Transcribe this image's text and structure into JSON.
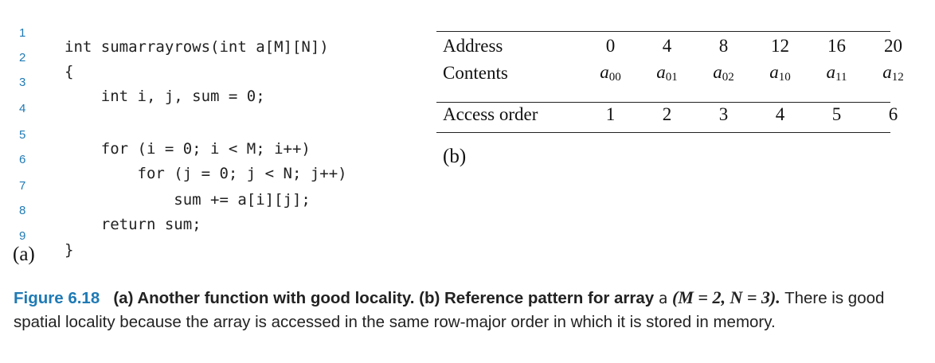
{
  "code": {
    "lines": [
      {
        "num": "1",
        "text": "int sumarrayrows(int a[M][N])"
      },
      {
        "num": "2",
        "text": "{"
      },
      {
        "num": "3",
        "text": "    int i, j, sum = 0;"
      },
      {
        "num": "4",
        "text": ""
      },
      {
        "num": "5",
        "text": "    for (i = 0; i < M; i++)"
      },
      {
        "num": "6",
        "text": "        for (j = 0; j < N; j++)"
      },
      {
        "num": "7",
        "text": "            sum += a[i][j];"
      },
      {
        "num": "8",
        "text": "    return sum;"
      },
      {
        "num": "9",
        "text": "}"
      }
    ]
  },
  "panel_a_label": "(a)",
  "panel_b_label": "(b)",
  "table": {
    "address_label": "Address",
    "contents_label": "Contents",
    "access_label": "Access order",
    "addresses": [
      "0",
      "4",
      "8",
      "12",
      "16",
      "20"
    ],
    "contents": [
      {
        "base": "a",
        "sub": "00"
      },
      {
        "base": "a",
        "sub": "01"
      },
      {
        "base": "a",
        "sub": "02"
      },
      {
        "base": "a",
        "sub": "10"
      },
      {
        "base": "a",
        "sub": "11"
      },
      {
        "base": "a",
        "sub": "12"
      }
    ],
    "access_order": [
      "1",
      "2",
      "3",
      "4",
      "5",
      "6"
    ]
  },
  "caption": {
    "figure_number": "Figure 6.18",
    "bold_text": "(a) Another function with good locality. (b) Reference pattern for array",
    "array_name": "a",
    "params": "(M = 2, N = 3).",
    "body": "There is good spatial locality because the array is accessed in the same row-major order in which it is stored in memory."
  }
}
